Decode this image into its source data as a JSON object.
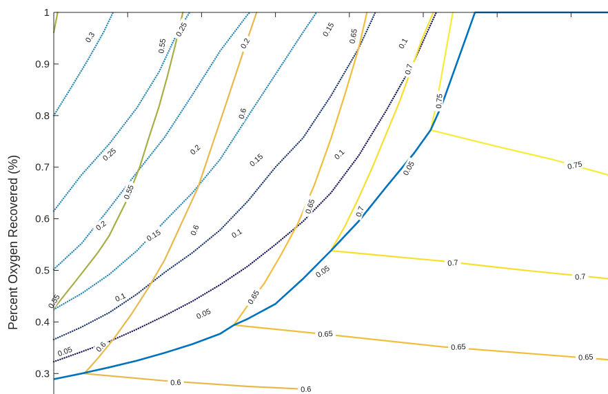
{
  "chart_data": {
    "type": "line",
    "title": "",
    "xlabel": "",
    "ylabel": "Percent Oxygen Recovered (%)",
    "ylim": [
      0.27,
      1.0
    ],
    "grid": false,
    "y_ticks": [
      {
        "value": 0.3,
        "label": "0.3"
      },
      {
        "value": 0.4,
        "label": "0.4"
      },
      {
        "value": 0.5,
        "label": "0.5"
      },
      {
        "value": 0.6,
        "label": "0.6"
      },
      {
        "value": 0.7,
        "label": "0.7"
      },
      {
        "value": 0.8,
        "label": "0.8"
      },
      {
        "value": 0.9,
        "label": "0.9"
      },
      {
        "value": 1.0,
        "label": "1"
      }
    ],
    "boundary": {
      "name": "",
      "color": "#0072BD",
      "points": [
        [
          0.0,
          0.289
        ],
        [
          0.05,
          0.3
        ],
        [
          0.1,
          0.312
        ],
        [
          0.15,
          0.325
        ],
        [
          0.2,
          0.34
        ],
        [
          0.25,
          0.357
        ],
        [
          0.3,
          0.377
        ],
        [
          0.325,
          0.394
        ],
        [
          0.35,
          0.406
        ],
        [
          0.4,
          0.435
        ],
        [
          0.45,
          0.484
        ],
        [
          0.5,
          0.538
        ],
        [
          0.55,
          0.595
        ],
        [
          0.6,
          0.662
        ],
        [
          0.65,
          0.727
        ],
        [
          0.68,
          0.772
        ],
        [
          0.7,
          0.82
        ],
        [
          0.72,
          0.88
        ],
        [
          0.74,
          0.94
        ],
        [
          0.76,
          1.0
        ],
        [
          1.0,
          1.0
        ]
      ]
    },
    "contours": [
      {
        "level": "0.3",
        "style": "dotted",
        "color": "#2E8BB8",
        "points": [
          [
            0.0,
            0.8
          ],
          [
            0.03,
            0.852
          ],
          [
            0.06,
            0.905
          ],
          [
            0.09,
            0.962
          ],
          [
            0.107,
            1.0
          ]
        ],
        "labels": [
          {
            "text": "0.3",
            "at": [
              0.065,
              0.952
            ],
            "angle": -58
          }
        ]
      },
      {
        "level": "0.25",
        "style": "dotted",
        "color": "#2E8BB8",
        "points": [
          [
            0.0,
            0.615
          ],
          [
            0.05,
            0.685
          ],
          [
            0.1,
            0.745
          ],
          [
            0.15,
            0.815
          ],
          [
            0.19,
            0.885
          ],
          [
            0.225,
            0.965
          ],
          [
            0.245,
            1.0
          ]
        ],
        "labels": [
          {
            "text": "0.25",
            "at": [
              0.1,
              0.725
            ],
            "angle": -42
          },
          {
            "text": "0.25",
            "at": [
              0.23,
              0.967
            ],
            "angle": -62
          }
        ]
      },
      {
        "level": "0.2",
        "style": "dotted",
        "color": "#2E8BB8",
        "points": [
          [
            0.0,
            0.502
          ],
          [
            0.05,
            0.552
          ],
          [
            0.1,
            0.62
          ],
          [
            0.15,
            0.69
          ],
          [
            0.2,
            0.758
          ],
          [
            0.25,
            0.84
          ],
          [
            0.3,
            0.925
          ],
          [
            0.35,
            0.996
          ],
          [
            0.354,
            1.0
          ]
        ],
        "labels": [
          {
            "text": "0.2",
            "at": [
              0.085,
              0.587
            ],
            "angle": -37
          },
          {
            "text": "0.2",
            "at": [
              0.255,
              0.734
            ],
            "angle": -45
          },
          {
            "text": "0.2",
            "at": [
              0.345,
              0.94
            ],
            "angle": -60
          }
        ]
      },
      {
        "level": "0.15",
        "style": "dotted",
        "color": "#2E8BB8",
        "points": [
          [
            0.0,
            0.424
          ],
          [
            0.05,
            0.455
          ],
          [
            0.1,
            0.492
          ],
          [
            0.15,
            0.538
          ],
          [
            0.2,
            0.595
          ],
          [
            0.25,
            0.65
          ],
          [
            0.3,
            0.715
          ],
          [
            0.35,
            0.798
          ],
          [
            0.4,
            0.88
          ],
          [
            0.45,
            0.962
          ],
          [
            0.474,
            1.0
          ]
        ],
        "labels": [
          {
            "text": "0.15",
            "at": [
              0.18,
              0.568
            ],
            "angle": -32
          },
          {
            "text": "0.15",
            "at": [
              0.365,
              0.714
            ],
            "angle": -42
          },
          {
            "text": "0.15",
            "at": [
              0.495,
              0.967
            ],
            "angle": -60
          }
        ]
      },
      {
        "level": "0.1",
        "style": "dotted",
        "color": "#1F3A6E",
        "points": [
          [
            0.0,
            0.366
          ],
          [
            0.05,
            0.39
          ],
          [
            0.1,
            0.418
          ],
          [
            0.15,
            0.454
          ],
          [
            0.2,
            0.496
          ],
          [
            0.25,
            0.534
          ],
          [
            0.3,
            0.578
          ],
          [
            0.35,
            0.634
          ],
          [
            0.4,
            0.7
          ],
          [
            0.45,
            0.757
          ],
          [
            0.5,
            0.838
          ],
          [
            0.55,
            0.93
          ],
          [
            0.575,
            0.988
          ],
          [
            0.58,
            1.0
          ]
        ],
        "labels": [
          {
            "text": "0.1",
            "at": [
              0.12,
              0.448
            ],
            "angle": -25
          },
          {
            "text": "0.1",
            "at": [
              0.33,
              0.572
            ],
            "angle": -32
          },
          {
            "text": "0.1",
            "at": [
              0.515,
              0.725
            ],
            "angle": -45
          },
          {
            "text": "0.1",
            "at": [
              0.63,
              0.94
            ],
            "angle": -62
          }
        ]
      },
      {
        "level": "0.05",
        "style": "dotted",
        "color": "#1A1A5E",
        "points": [
          [
            0.0,
            0.323
          ],
          [
            0.05,
            0.342
          ],
          [
            0.1,
            0.362
          ],
          [
            0.15,
            0.386
          ],
          [
            0.2,
            0.412
          ],
          [
            0.25,
            0.44
          ],
          [
            0.3,
            0.472
          ],
          [
            0.35,
            0.508
          ],
          [
            0.4,
            0.55
          ],
          [
            0.45,
            0.595
          ],
          [
            0.5,
            0.65
          ],
          [
            0.55,
            0.722
          ],
          [
            0.6,
            0.81
          ],
          [
            0.65,
            0.905
          ],
          [
            0.685,
            0.988
          ],
          [
            0.69,
            1.0
          ]
        ],
        "labels": [
          {
            "text": "0.05",
            "at": [
              0.02,
              0.343
            ],
            "angle": -20
          },
          {
            "text": "0.05",
            "at": [
              0.27,
              0.416
            ],
            "angle": -25
          },
          {
            "text": "0.05",
            "at": [
              0.485,
              0.498
            ],
            "angle": -35
          },
          {
            "text": "0.05",
            "at": [
              0.64,
              0.698
            ],
            "angle": -60
          }
        ]
      },
      {
        "level": "0.55",
        "style": "solid",
        "color": "#A8AE45",
        "points": [
          [
            0.0,
            0.426
          ],
          [
            0.04,
            0.48
          ],
          [
            0.08,
            0.535
          ],
          [
            0.1,
            0.567
          ],
          [
            0.13,
            0.632
          ],
          [
            0.155,
            0.7
          ],
          [
            0.17,
            0.752
          ],
          [
            0.19,
            0.818
          ],
          [
            0.205,
            0.876
          ],
          [
            0.22,
            0.94
          ],
          [
            0.233,
            1.0
          ]
        ],
        "labels": [
          {
            "text": "0.55",
            "at": [
              0.0,
              0.44
            ],
            "angle": -58
          },
          {
            "text": "0.55",
            "at": [
              0.135,
              0.652
            ],
            "angle": -68
          },
          {
            "text": "0.55",
            "at": [
              0.195,
              0.935
            ],
            "angle": -82
          }
        ]
      },
      {
        "level": "0.55b",
        "style": "solid",
        "color": "#A8AE45",
        "points": [
          [
            0.0,
            0.961
          ],
          [
            0.007,
            1.0
          ]
        ],
        "labels": []
      },
      {
        "level": "0.6",
        "style": "solid",
        "color": "#E8B84A",
        "points": [
          [
            0.055,
            0.3
          ],
          [
            0.08,
            0.33
          ],
          [
            0.11,
            0.37
          ],
          [
            0.14,
            0.415
          ],
          [
            0.17,
            0.465
          ],
          [
            0.2,
            0.52
          ],
          [
            0.23,
            0.59
          ],
          [
            0.26,
            0.66
          ],
          [
            0.285,
            0.74
          ],
          [
            0.31,
            0.82
          ],
          [
            0.33,
            0.885
          ],
          [
            0.35,
            0.95
          ],
          [
            0.366,
            1.0
          ]
        ],
        "labels": [
          {
            "text": "0.6",
            "at": [
              0.085,
              0.352
            ],
            "angle": -48
          },
          {
            "text": "0.6",
            "at": [
              0.254,
              0.578
            ],
            "angle": -68
          },
          {
            "text": "0.6",
            "at": [
              0.34,
              0.804
            ],
            "angle": -75
          }
        ]
      },
      {
        "level": "0.65",
        "style": "solid",
        "color": "#F0BE3C",
        "points": [
          [
            0.325,
            0.394
          ],
          [
            0.35,
            0.432
          ],
          [
            0.38,
            0.475
          ],
          [
            0.41,
            0.53
          ],
          [
            0.44,
            0.59
          ],
          [
            0.47,
            0.665
          ],
          [
            0.5,
            0.755
          ],
          [
            0.525,
            0.84
          ],
          [
            0.55,
            0.93
          ],
          [
            0.565,
            1.0
          ]
        ],
        "labels": [
          {
            "text": "0.65",
            "at": [
              0.36,
              0.448
            ],
            "angle": -58
          },
          {
            "text": "0.65",
            "at": [
              0.462,
              0.624
            ],
            "angle": -72
          },
          {
            "text": "0.65",
            "at": [
              0.54,
              0.954
            ],
            "angle": -80
          }
        ]
      },
      {
        "level": "0.7",
        "style": "solid",
        "color": "#F7DF2A",
        "points": [
          [
            0.5,
            0.538
          ],
          [
            0.525,
            0.585
          ],
          [
            0.55,
            0.64
          ],
          [
            0.575,
            0.7
          ],
          [
            0.6,
            0.765
          ],
          [
            0.625,
            0.83
          ],
          [
            0.645,
            0.89
          ],
          [
            0.665,
            0.95
          ],
          [
            0.685,
            1.0
          ]
        ],
        "labels": [
          {
            "text": "0.7",
            "at": [
              0.552,
              0.614
            ],
            "angle": -70
          },
          {
            "text": "0.7",
            "at": [
              0.64,
              0.89
            ],
            "angle": -75
          }
        ]
      },
      {
        "level": "0.75",
        "style": "solid",
        "color": "#F7EC35",
        "points": [
          [
            0.68,
            0.772
          ],
          [
            0.69,
            0.82
          ],
          [
            0.7,
            0.88
          ],
          [
            0.71,
            0.94
          ],
          [
            0.72,
            1.0
          ]
        ],
        "labels": [
          {
            "text": "0.75",
            "at": [
              0.695,
              0.828
            ],
            "angle": -85
          }
        ]
      },
      {
        "level": "0.6r",
        "style": "solid",
        "color": "#E8B84A",
        "points": [
          [
            0.055,
            0.3
          ],
          [
            0.2,
            0.286
          ],
          [
            0.35,
            0.275
          ],
          [
            0.45,
            0.27
          ]
        ],
        "labels": [
          {
            "text": "0.6",
            "at": [
              0.22,
              0.283
            ],
            "angle": -3
          },
          {
            "text": "0.6",
            "at": [
              0.455,
              0.27
            ],
            "angle": -3
          }
        ]
      },
      {
        "level": "0.65r",
        "style": "solid",
        "color": "#F0BE3C",
        "points": [
          [
            0.325,
            0.394
          ],
          [
            0.5,
            0.375
          ],
          [
            0.7,
            0.352
          ],
          [
            1.0,
            0.327
          ]
        ],
        "labels": [
          {
            "text": "0.65",
            "at": [
              0.49,
              0.377
            ],
            "angle": -4
          },
          {
            "text": "0.65",
            "at": [
              0.73,
              0.352
            ],
            "angle": -4
          },
          {
            "text": "0.65",
            "at": [
              0.96,
              0.332
            ],
            "angle": -4
          }
        ]
      },
      {
        "level": "0.7r",
        "style": "solid",
        "color": "#F7DF2A",
        "points": [
          [
            0.5,
            0.538
          ],
          [
            0.7,
            0.518
          ],
          [
            0.85,
            0.5
          ],
          [
            1.0,
            0.484
          ]
        ],
        "labels": [
          {
            "text": "0.7",
            "at": [
              0.72,
              0.515
            ],
            "angle": -5
          },
          {
            "text": "0.7",
            "at": [
              0.95,
              0.488
            ],
            "angle": -5
          }
        ]
      },
      {
        "level": "0.75r",
        "style": "solid",
        "color": "#F7EC35",
        "points": [
          [
            0.68,
            0.772
          ],
          [
            0.8,
            0.74
          ],
          [
            0.9,
            0.715
          ],
          [
            1.0,
            0.685
          ]
        ],
        "labels": [
          {
            "text": "0.75",
            "at": [
              0.94,
              0.704
            ],
            "angle": -12
          }
        ]
      }
    ]
  }
}
